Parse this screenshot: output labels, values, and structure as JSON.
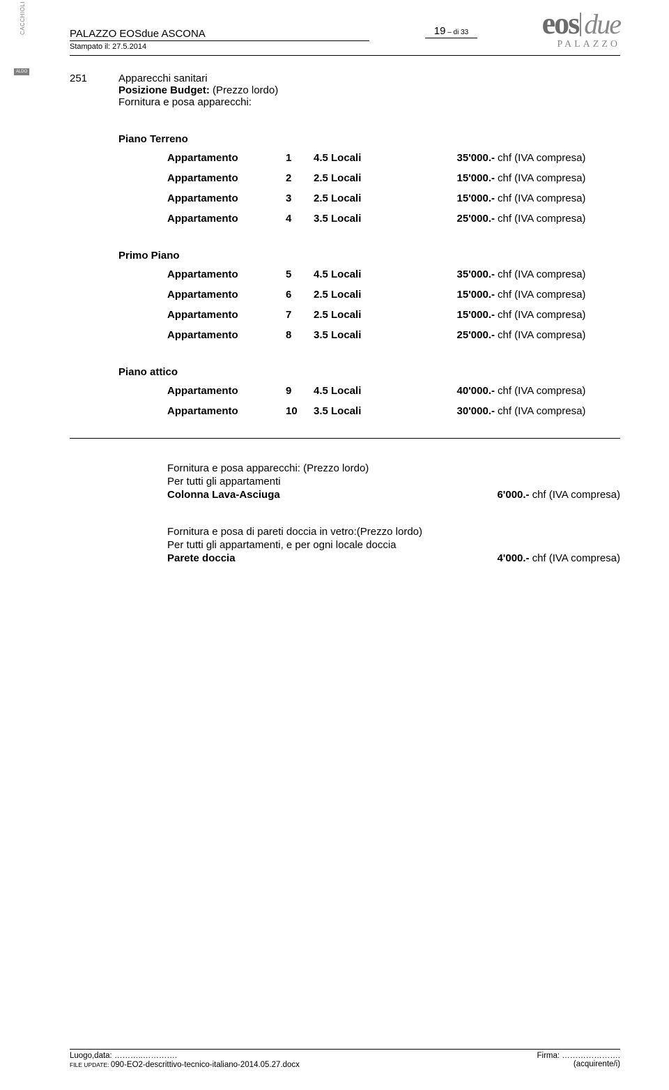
{
  "side_label": "CACCHIOLI ARCHITETTO",
  "side_box": "ALDO",
  "header": {
    "title": "PALAZZO EOSdue ASCONA",
    "subtitle": "Stampato il: 27.5.2014",
    "page_big": "19",
    "page_small": " – di 33"
  },
  "logo": {
    "eos": "eos",
    "due": "due",
    "sub": "PALAZZO"
  },
  "section": {
    "code": "251",
    "line1": "Apparecchi sanitari",
    "line2": "Posizione Budget:",
    "line2_suffix": " (Prezzo lordo)",
    "line3": "Fornitura e posa apparecchi:"
  },
  "floors": [
    {
      "heading": "Piano Terreno",
      "rows": [
        {
          "label": "Appartamento",
          "num": "1",
          "locali": "4.5 Locali",
          "price": "35'000.-",
          "suffix": "chf  (IVA compresa)"
        },
        {
          "label": "Appartamento",
          "num": "2",
          "locali": "2.5 Locali",
          "price": "15'000.-",
          "suffix": "chf  (IVA compresa)"
        },
        {
          "label": "Appartamento",
          "num": "3",
          "locali": "2.5 Locali",
          "price": "15'000.-",
          "suffix": "chf  (IVA compresa)"
        },
        {
          "label": "Appartamento",
          "num": "4",
          "locali": "3.5 Locali",
          "price": "25'000.-",
          "suffix": "chf  (IVA compresa)"
        }
      ]
    },
    {
      "heading": "Primo Piano",
      "rows": [
        {
          "label": "Appartamento",
          "num": "5",
          "locali": "4.5 Locali",
          "price": "35'000.-",
          "suffix": "chf  (IVA compresa)"
        },
        {
          "label": "Appartamento",
          "num": "6",
          "locali": "2.5 Locali",
          "price": "15'000.-",
          "suffix": "chf  (IVA compresa)"
        },
        {
          "label": "Appartamento",
          "num": "7",
          "locali": "2.5 Locali",
          "price": "15'000.-",
          "suffix": "chf  (IVA compresa)"
        },
        {
          "label": "Appartamento",
          "num": "8",
          "locali": "3.5 Locali",
          "price": "25'000.-",
          "suffix": "chf  (IVA compresa)"
        }
      ]
    },
    {
      "heading": "Piano attico",
      "rows": [
        {
          "label": "Appartamento",
          "num": "9",
          "locali": "4.5 Locali",
          "price": "40'000.-",
          "suffix": "chf  (IVA compresa)"
        },
        {
          "label": "Appartamento",
          "num": "10",
          "locali": "3.5 Locali",
          "price": "30'000.-",
          "suffix": "chf  (IVA compresa)"
        }
      ]
    }
  ],
  "extras": [
    {
      "lines": [
        "Fornitura e posa apparecchi: (Prezzo lordo)",
        "Per tutti gli appartamenti"
      ],
      "name": "Colonna Lava-Asciuga",
      "price": "6'000.-",
      "suffix": "chf  (IVA compresa)"
    },
    {
      "lines": [
        "Fornitura e posa di pareti doccia in vetro:(Prezzo lordo)",
        "Per tutti gli appartamenti, e per ogni locale doccia"
      ],
      "name": "Parete doccia",
      "price": "4'000.-",
      "suffix": "chf  (IVA compresa)"
    }
  ],
  "footer": {
    "luogo": "Luogo,data: ………..………….",
    "firma": "Firma:        ………………….",
    "file_prefix": "FILE UPDATE: ",
    "file": "090-EO2-descrittivo-tecnico-italiano-2014.05.27.docx",
    "acq": "(acquirente/i)"
  }
}
